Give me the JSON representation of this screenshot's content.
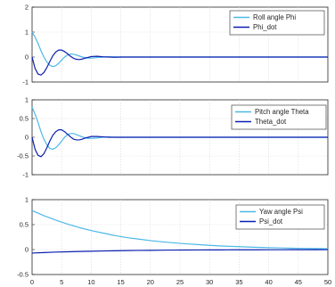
{
  "chart_data": [
    {
      "type": "line",
      "xlim": [
        0,
        50
      ],
      "ylim": [
        -1,
        2
      ],
      "yticks": [
        -1,
        0,
        1,
        2
      ],
      "xticks": [],
      "grid": true,
      "legend_placement": "top-right",
      "series": [
        {
          "name": "Roll angle Phi",
          "color": "#4db8e6",
          "x": [
            0,
            0.5,
            1,
            1.5,
            2,
            2.5,
            3,
            3.5,
            4,
            4.5,
            5,
            5.5,
            6,
            6.5,
            7,
            7.5,
            8,
            8.5,
            9,
            9.5,
            10,
            11,
            12,
            13,
            14,
            15,
            20,
            30,
            40,
            50
          ],
          "y": [
            1.0,
            0.8,
            0.55,
            0.25,
            0.0,
            -0.2,
            -0.33,
            -0.38,
            -0.35,
            -0.25,
            -0.12,
            0.0,
            0.08,
            0.12,
            0.11,
            0.08,
            0.04,
            0.0,
            -0.03,
            -0.04,
            -0.04,
            -0.02,
            0.0,
            0.01,
            0.01,
            0.0,
            0.0,
            0.0,
            0.0,
            0.0
          ]
        },
        {
          "name": "Phi_dot",
          "color": "#0a1fb0",
          "x": [
            0,
            0.5,
            1,
            1.5,
            2,
            2.5,
            3,
            3.5,
            4,
            4.5,
            5,
            5.5,
            6,
            6.5,
            7,
            7.5,
            8,
            8.5,
            9,
            9.5,
            10,
            11,
            12,
            13,
            14,
            15,
            20,
            30,
            40,
            50
          ],
          "y": [
            0.0,
            -0.45,
            -0.68,
            -0.72,
            -0.62,
            -0.42,
            -0.18,
            0.05,
            0.2,
            0.28,
            0.28,
            0.22,
            0.13,
            0.03,
            -0.05,
            -0.09,
            -0.1,
            -0.08,
            -0.04,
            -0.01,
            0.02,
            0.03,
            0.01,
            0.0,
            -0.01,
            0.0,
            0.0,
            0.0,
            0.0,
            0.0
          ]
        }
      ]
    },
    {
      "type": "line",
      "xlim": [
        0,
        50
      ],
      "ylim": [
        -1,
        1
      ],
      "yticks": [
        -1,
        -0.5,
        0,
        0.5,
        1
      ],
      "xticks": [],
      "grid": true,
      "legend_placement": "top-right",
      "series": [
        {
          "name": "Pitch angle Theta",
          "color": "#4db8e6",
          "x": [
            0,
            0.5,
            1,
            1.5,
            2,
            2.5,
            3,
            3.5,
            4,
            4.5,
            5,
            5.5,
            6,
            6.5,
            7,
            7.5,
            8,
            8.5,
            9,
            9.5,
            10,
            11,
            12,
            13,
            14,
            15,
            20,
            30,
            40,
            50
          ],
          "y": [
            0.8,
            0.62,
            0.4,
            0.15,
            -0.05,
            -0.2,
            -0.3,
            -0.32,
            -0.28,
            -0.2,
            -0.1,
            0.0,
            0.07,
            0.1,
            0.1,
            0.07,
            0.04,
            0.01,
            -0.02,
            -0.03,
            -0.03,
            -0.02,
            0.0,
            0.01,
            0.0,
            0.0,
            0.0,
            0.0,
            0.0,
            0.0
          ]
        },
        {
          "name": "Theta_dot",
          "color": "#0a1fb0",
          "x": [
            0,
            0.5,
            1,
            1.5,
            2,
            2.5,
            3,
            3.5,
            4,
            4.5,
            5,
            5.5,
            6,
            6.5,
            7,
            7.5,
            8,
            8.5,
            9,
            9.5,
            10,
            11,
            12,
            13,
            14,
            15,
            20,
            30,
            40,
            50
          ],
          "y": [
            0.0,
            -0.32,
            -0.48,
            -0.52,
            -0.44,
            -0.28,
            -0.1,
            0.05,
            0.15,
            0.2,
            0.2,
            0.15,
            0.08,
            0.01,
            -0.05,
            -0.07,
            -0.07,
            -0.05,
            -0.02,
            0.0,
            0.02,
            0.02,
            0.01,
            0.0,
            0.0,
            0.0,
            0.0,
            0.0,
            0.0,
            0.0
          ]
        }
      ]
    },
    {
      "type": "line",
      "xlim": [
        0,
        50
      ],
      "ylim": [
        -0.5,
        1
      ],
      "yticks": [
        -0.5,
        0,
        0.5,
        1
      ],
      "xticks": [
        0,
        5,
        10,
        15,
        20,
        25,
        30,
        35,
        40,
        45,
        50
      ],
      "grid": true,
      "legend_placement": "top-right",
      "series": [
        {
          "name": "Yaw angle Psi",
          "color": "#4db8e6",
          "x": [
            0,
            2,
            4,
            6,
            8,
            10,
            12,
            14,
            16,
            18,
            20,
            22,
            24,
            26,
            28,
            30,
            32,
            34,
            36,
            38,
            40,
            42,
            44,
            46,
            48,
            50
          ],
          "y": [
            0.78,
            0.68,
            0.59,
            0.51,
            0.44,
            0.38,
            0.33,
            0.28,
            0.24,
            0.21,
            0.18,
            0.155,
            0.135,
            0.115,
            0.1,
            0.085,
            0.072,
            0.062,
            0.053,
            0.045,
            0.038,
            0.032,
            0.027,
            0.023,
            0.02,
            0.017
          ]
        },
        {
          "name": "Psi_dot",
          "color": "#0a1fb0",
          "x": [
            0,
            2,
            4,
            6,
            8,
            10,
            12,
            14,
            16,
            18,
            20,
            22,
            24,
            26,
            28,
            30,
            32,
            34,
            36,
            38,
            40,
            42,
            44,
            46,
            48,
            50
          ],
          "y": [
            -0.07,
            -0.06,
            -0.05,
            -0.045,
            -0.038,
            -0.033,
            -0.028,
            -0.024,
            -0.02,
            -0.017,
            -0.015,
            -0.012,
            -0.01,
            -0.009,
            -0.008,
            -0.007,
            -0.006,
            -0.005,
            -0.004,
            -0.004,
            -0.003,
            -0.003,
            -0.002,
            -0.002,
            -0.002,
            -0.001
          ]
        }
      ]
    }
  ]
}
